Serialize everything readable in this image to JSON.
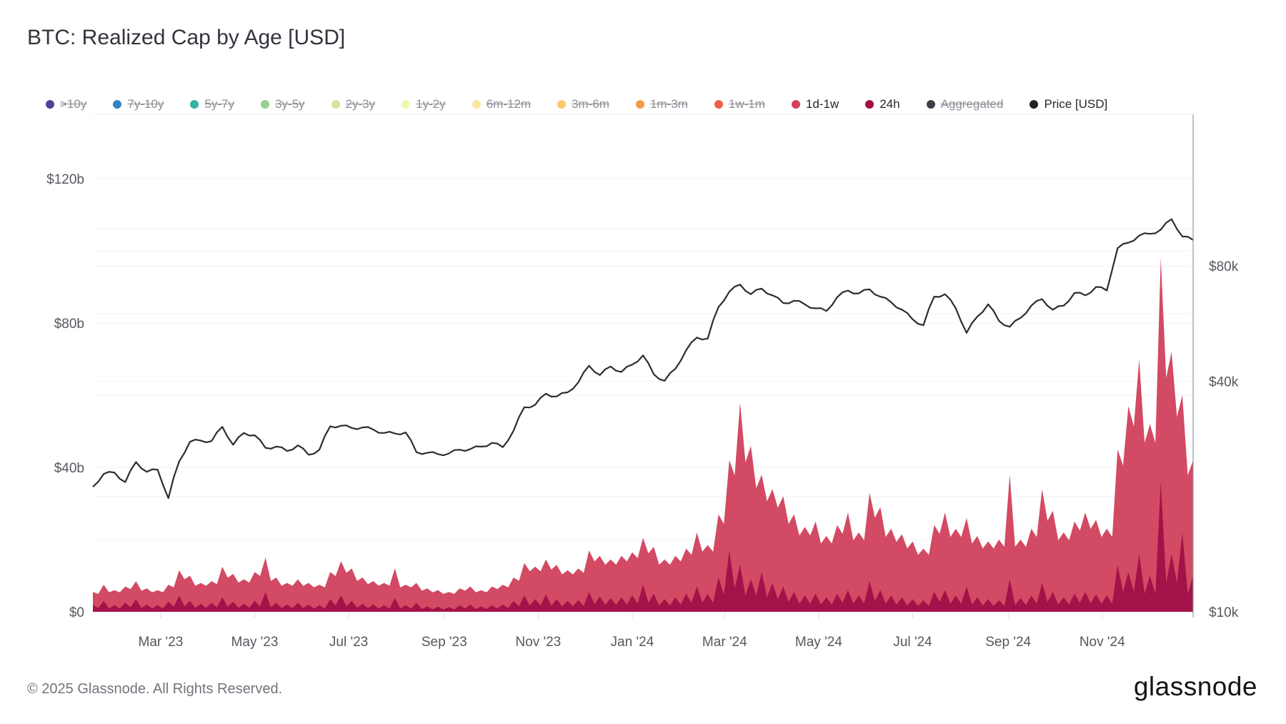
{
  "header": {
    "title": "BTC: Realized Cap by Age [USD]"
  },
  "legend": {
    "items": [
      {
        "label": ">10y",
        "color": "#514294",
        "active": false
      },
      {
        "label": "7y-10y",
        "color": "#2f83c3",
        "active": false
      },
      {
        "label": "5y-7y",
        "color": "#35b2a7",
        "active": false
      },
      {
        "label": "3y-5y",
        "color": "#94d18f",
        "active": false
      },
      {
        "label": "2y-3y",
        "color": "#cfe79b",
        "active": false
      },
      {
        "label": "1y-2y",
        "color": "#f2f6ab",
        "active": false
      },
      {
        "label": "6m-12m",
        "color": "#fbe79a",
        "active": false
      },
      {
        "label": "3m-6m",
        "color": "#fbc96c",
        "active": false
      },
      {
        "label": "1m-3m",
        "color": "#f69a4a",
        "active": false
      },
      {
        "label": "1w-1m",
        "color": "#ee6144",
        "active": false
      },
      {
        "label": "1d-1w",
        "color": "#d5405f",
        "active": true
      },
      {
        "label": "24h",
        "color": "#a0103f",
        "active": true
      },
      {
        "label": "Aggregated",
        "color": "#3f3f49",
        "active": false
      },
      {
        "label": "Price [USD]",
        "color": "#222228",
        "active": true
      }
    ]
  },
  "chart_data": {
    "type": "area",
    "title": "BTC: Realized Cap by Age [USD]",
    "start_date": "2023-01-16",
    "step_days": 7,
    "grid": "on",
    "legend_position": "top",
    "left_axis": {
      "unit": "USD billions",
      "bottom_value": 0,
      "top_value": 137.8,
      "gridlines_b": [
        20,
        40,
        60,
        80,
        100,
        120
      ],
      "labels": [
        {
          "value": 0,
          "text": "$0"
        },
        {
          "value": 40,
          "text": "$40b"
        },
        {
          "value": 80,
          "text": "$80b"
        },
        {
          "value": 120,
          "text": "$120b"
        }
      ]
    },
    "right_axis": {
      "unit": "USD thousands",
      "scale": "log",
      "bottom_value_k": 10,
      "top_value_k": 199,
      "gridlines_k": [
        20,
        40,
        60,
        80,
        100
      ],
      "labels": [
        {
          "value": 10,
          "text": "$10k"
        },
        {
          "value": 40,
          "text": "$40k"
        },
        {
          "value": 80,
          "text": "$80k"
        }
      ]
    },
    "x_axis": {
      "ticks": [
        {
          "date": "2023-03-01",
          "label": "Mar '23"
        },
        {
          "date": "2023-05-01",
          "label": "May '23"
        },
        {
          "date": "2023-07-01",
          "label": "Jul '23"
        },
        {
          "date": "2023-09-01",
          "label": "Sep '23"
        },
        {
          "date": "2023-11-01",
          "label": "Nov '23"
        },
        {
          "date": "2024-01-01",
          "label": "Jan '24"
        },
        {
          "date": "2024-03-01",
          "label": "Mar '24"
        },
        {
          "date": "2024-05-01",
          "label": "May '24"
        },
        {
          "date": "2024-07-01",
          "label": "Jul '24"
        },
        {
          "date": "2024-09-01",
          "label": "Sep '24"
        },
        {
          "date": "2024-11-01",
          "label": "Nov '24"
        }
      ]
    },
    "series": [
      {
        "name": "1d-1w",
        "axis": "left",
        "render": "area",
        "color": "#d24a63",
        "values_b": [
          5.5,
          7.5,
          6.0,
          7.0,
          8.5,
          6.5,
          6.0,
          7.5,
          11.5,
          10.0,
          8.0,
          8.5,
          12.5,
          10.5,
          9.0,
          11.0,
          15.0,
          9.5,
          8.0,
          9.0,
          8.0,
          7.5,
          11.0,
          14.0,
          12.0,
          9.5,
          8.5,
          8.0,
          12.0,
          7.5,
          8.0,
          6.5,
          6.0,
          5.5,
          6.5,
          7.0,
          6.0,
          7.0,
          7.5,
          9.5,
          13.5,
          12.5,
          14.5,
          13.0,
          11.5,
          12.0,
          17.0,
          15.5,
          14.5,
          15.5,
          16.5,
          20.5,
          18.0,
          14.5,
          15.5,
          17.5,
          22.0,
          18.5,
          27.0,
          42.0,
          58.0,
          46.0,
          38.0,
          34.0,
          32.0,
          27.0,
          23.5,
          25.0,
          21.0,
          24.0,
          27.5,
          22.0,
          33.0,
          29.0,
          23.0,
          21.5,
          19.5,
          17.5,
          24.0,
          27.5,
          23.0,
          26.0,
          21.0,
          19.5,
          20.0,
          38.0,
          20.0,
          23.0,
          34.0,
          28.0,
          22.0,
          25.0,
          27.5,
          25.5,
          23.0,
          45.0,
          57.0,
          70.0,
          52.0,
          98.0,
          72.0,
          60.0,
          42.0
        ]
      },
      {
        "name": "24h",
        "axis": "left",
        "render": "area",
        "color": "#a31248",
        "values_b": [
          2.0,
          3.0,
          1.8,
          2.5,
          3.5,
          2.0,
          1.8,
          2.8,
          4.5,
          3.0,
          2.2,
          2.5,
          4.0,
          2.8,
          2.2,
          3.0,
          5.5,
          2.5,
          2.0,
          2.5,
          2.0,
          1.8,
          3.5,
          4.5,
          3.0,
          2.2,
          2.0,
          1.8,
          3.8,
          1.8,
          2.5,
          1.5,
          1.4,
          1.3,
          1.8,
          2.0,
          1.5,
          1.8,
          2.0,
          3.0,
          4.5,
          3.5,
          4.8,
          3.5,
          3.0,
          3.2,
          5.5,
          4.2,
          3.8,
          4.0,
          4.5,
          7.5,
          5.0,
          3.5,
          4.0,
          5.0,
          7.0,
          5.0,
          9.5,
          17.0,
          13.0,
          9.0,
          11.0,
          8.0,
          7.0,
          5.5,
          4.5,
          5.0,
          4.0,
          5.0,
          6.0,
          4.5,
          8.5,
          6.0,
          4.5,
          4.0,
          3.5,
          3.2,
          5.5,
          6.0,
          4.5,
          7.0,
          4.0,
          3.5,
          3.2,
          9.0,
          3.8,
          4.5,
          8.0,
          5.5,
          4.0,
          5.0,
          5.5,
          4.8,
          4.5,
          13.0,
          11.0,
          16.0,
          10.0,
          36.0,
          16.0,
          22.0,
          10.0
        ]
      },
      {
        "name": "Price [USD]",
        "axis": "right",
        "render": "line",
        "color": "#2c2c33",
        "values_k": [
          21.2,
          22.9,
          23.1,
          21.8,
          24.6,
          23.2,
          23.5,
          19.8,
          24.7,
          27.8,
          28.0,
          27.9,
          30.4,
          27.3,
          29.3,
          28.9,
          26.8,
          27.0,
          26.3,
          27.2,
          25.7,
          26.5,
          30.5,
          30.6,
          30.2,
          30.3,
          29.9,
          29.3,
          29.2,
          29.4,
          26.1,
          26.0,
          25.8,
          25.9,
          26.5,
          26.6,
          27.0,
          27.6,
          26.9,
          29.7,
          34.2,
          34.7,
          37.1,
          36.5,
          37.4,
          39.7,
          43.9,
          41.5,
          43.7,
          42.3,
          44.2,
          46.7,
          41.7,
          40.1,
          43.1,
          48.2,
          52.0,
          51.7,
          62.5,
          68.5,
          71.5,
          67.5,
          69.8,
          67.0,
          64.0,
          64.9,
          63.5,
          62.0,
          61.0,
          66.3,
          69.0,
          67.8,
          69.5,
          66.5,
          64.3,
          61.5,
          58.0,
          56.0,
          66.5,
          67.5,
          62.0,
          53.5,
          59.0,
          63.5,
          57.5,
          55.5,
          58.5,
          63.0,
          65.5,
          61.5,
          63.0,
          68.0,
          67.0,
          70.5,
          69.0,
          89.0,
          92.0,
          96.0,
          97.0,
          99.5,
          106.0,
          95.5,
          93.5
        ]
      }
    ]
  },
  "footer": {
    "copyright": "© 2025 Glassnode. All Rights Reserved.",
    "brand": "glassnode"
  }
}
